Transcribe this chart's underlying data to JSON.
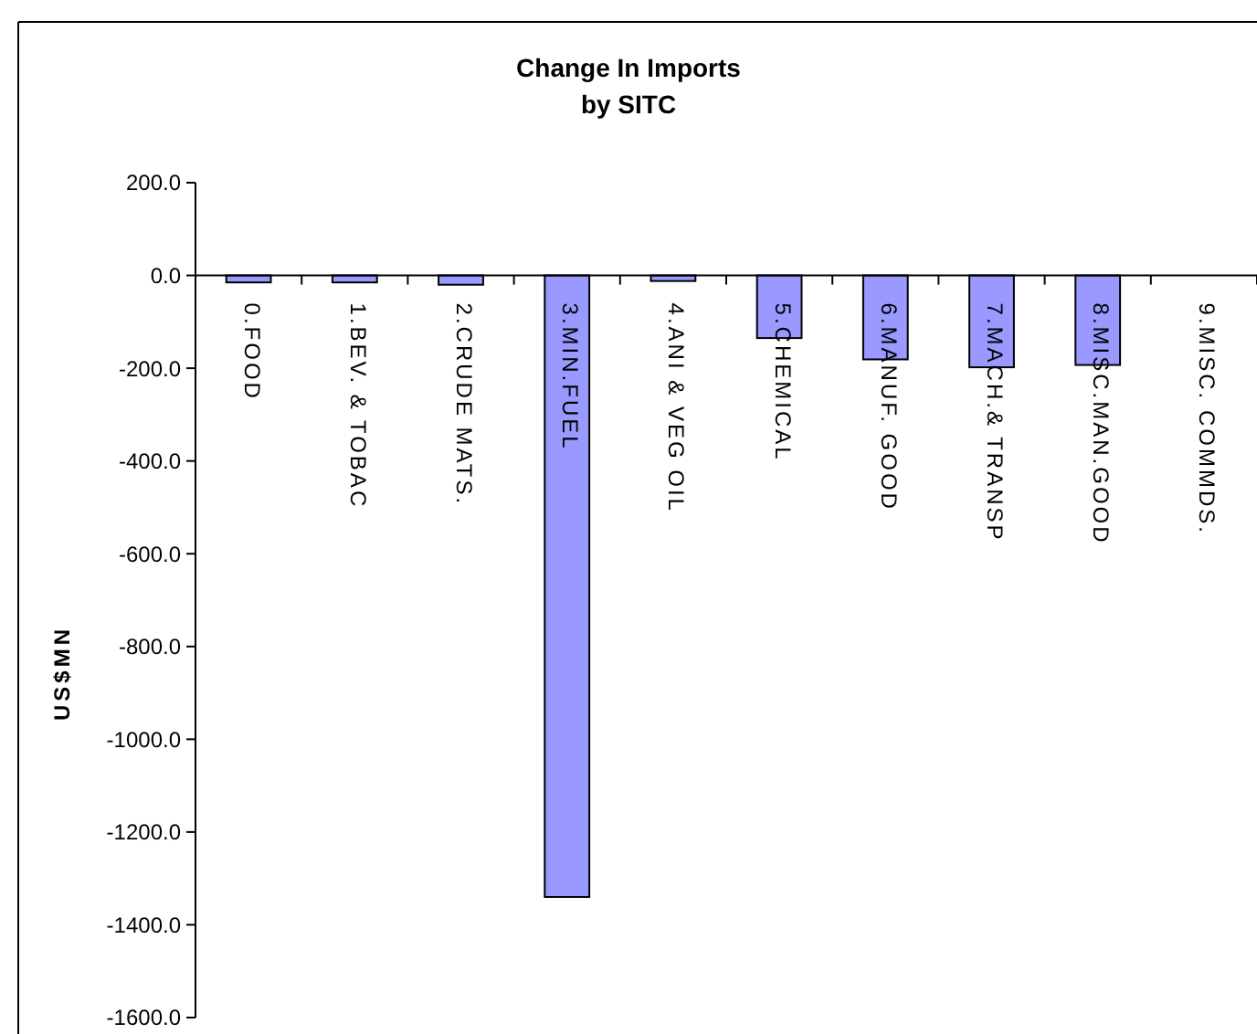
{
  "chart_data": {
    "type": "bar",
    "title": "Change In Imports",
    "subtitle": "by SITC",
    "ylabel": "US$MN",
    "categories": [
      "0.FOOD",
      "1.BEV. & TOBAC",
      "2.CRUDE MATS.",
      "3.MIN.FUEL",
      "4.ANI & VEG OIL",
      "5.CHEMICAL",
      "6.MANUF. GOOD",
      "7.MACH.& TRANSP",
      "8.MISC.MAN.GOOD",
      "9.MISC. COMMDS."
    ],
    "values": [
      -15,
      -15,
      -20,
      -1340,
      -12,
      -135,
      -181,
      -198,
      -193,
      0
    ],
    "color": "#9999ff",
    "ylim": [
      -1600,
      200
    ],
    "yticks": [
      {
        "value": 200,
        "label": "200.0"
      },
      {
        "value": 0,
        "label": "0.0"
      },
      {
        "value": -200,
        "label": "-200.0"
      },
      {
        "value": -400,
        "label": "-400.0"
      },
      {
        "value": -600,
        "label": "-600.0"
      },
      {
        "value": -800,
        "label": "-800.0"
      },
      {
        "value": -1000,
        "label": "-1000.0"
      },
      {
        "value": -1200,
        "label": "-1200.0"
      },
      {
        "value": -1400,
        "label": "-1400.0"
      },
      {
        "value": -1600,
        "label": "-1600.0"
      }
    ],
    "grid": false
  }
}
